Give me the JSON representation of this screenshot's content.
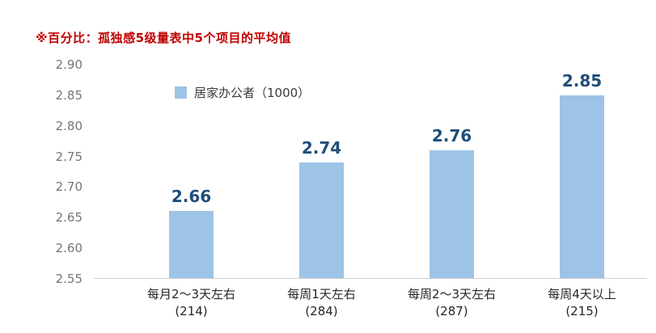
{
  "note": "※百分比：孤独感5级量表中5个项目的平均值",
  "legend": {
    "label": "居家办公者（1000）"
  },
  "colors": {
    "bar": "#9DC3E6",
    "value_label": "#1F4E79",
    "note": "#C00000",
    "tick_label": "#757575",
    "axis_line": "#D0CECE"
  },
  "chart_data": {
    "type": "bar",
    "title": "",
    "xlabel": "",
    "ylabel": "",
    "categories": [
      "每月2～3天左右",
      "每周1天左右",
      "每周2～3天左右",
      "每周4天以上"
    ],
    "category_counts": [
      "(214)",
      "(284)",
      "(287)",
      "(215)"
    ],
    "values": [
      2.66,
      2.74,
      2.76,
      2.85
    ],
    "value_labels": [
      "2.66",
      "2.74",
      "2.76",
      "2.85"
    ],
    "ylim": [
      2.55,
      2.9
    ],
    "yticks": [
      2.9,
      2.85,
      2.8,
      2.75,
      2.7,
      2.65,
      2.6,
      2.55
    ],
    "grid": false,
    "legend_entries": [
      "居家办公者（1000）"
    ],
    "legend_position": "top-left-inside"
  }
}
